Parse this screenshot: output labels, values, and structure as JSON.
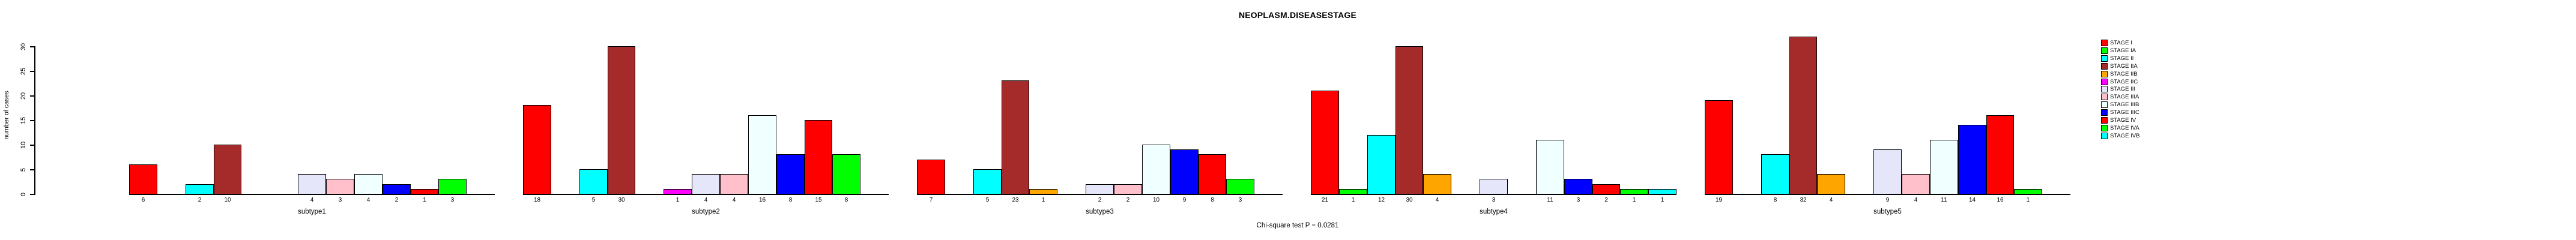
{
  "chart_data": {
    "type": "bar",
    "title": "NEOPLASM.DISEASESTAGE",
    "subtitle": "Chi-square test P = 0.0281",
    "xlabel": "",
    "ylabel": "number of cases",
    "ylim": [
      0,
      30
    ],
    "yticks": [
      0,
      5,
      10,
      15,
      20,
      25,
      30
    ],
    "grid": false,
    "bar_value_labels_shown": true,
    "legend_position": "right",
    "categories": [
      "subtype1",
      "subtype2",
      "subtype3",
      "subtype4",
      "subtype5"
    ],
    "series": [
      {
        "name": "STAGE I",
        "color": "#FF0000",
        "values": [
          6,
          18,
          7,
          21,
          19
        ]
      },
      {
        "name": "STAGE IA",
        "color": "#00FF00",
        "values": [
          0,
          0,
          0,
          1,
          0
        ]
      },
      {
        "name": "STAGE II",
        "color": "#00FFFF",
        "values": [
          2,
          5,
          5,
          12,
          8
        ]
      },
      {
        "name": "STAGE IIA",
        "color": "#A52A2A",
        "values": [
          10,
          30,
          23,
          30,
          32
        ]
      },
      {
        "name": "STAGE IIB",
        "color": "#FFA500",
        "values": [
          0,
          0,
          1,
          4,
          4
        ]
      },
      {
        "name": "STAGE IIC",
        "color": "#FF00FF",
        "values": [
          0,
          1,
          0,
          0,
          0
        ]
      },
      {
        "name": "STAGE III",
        "color": "#E6E6FA",
        "values": [
          4,
          4,
          2,
          3,
          9
        ]
      },
      {
        "name": "STAGE IIIA",
        "color": "#FFC0CB",
        "values": [
          3,
          4,
          2,
          0,
          4
        ]
      },
      {
        "name": "STAGE IIIB",
        "color": "#F0FFFF",
        "values": [
          4,
          16,
          10,
          11,
          11
        ]
      },
      {
        "name": "STAGE IIIC",
        "color": "#0000FF",
        "values": [
          2,
          8,
          9,
          3,
          14
        ]
      },
      {
        "name": "STAGE IV",
        "color": "#FF0000",
        "values": [
          1,
          15,
          8,
          2,
          16
        ]
      },
      {
        "name": "STAGE IVA",
        "color": "#00FF00",
        "values": [
          3,
          8,
          3,
          1,
          1
        ]
      },
      {
        "name": "STAGE IVB",
        "color": "#00FFFF",
        "values": [
          0,
          0,
          0,
          1,
          0
        ]
      }
    ]
  }
}
